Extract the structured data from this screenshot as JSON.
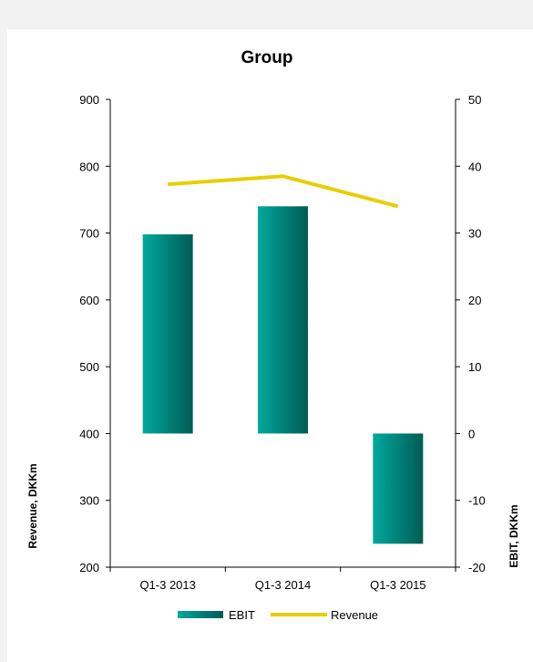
{
  "chart_data": {
    "type": "bar+line",
    "title": "Group",
    "categories": [
      "Q1-3 2013",
      "Q1-3 2014",
      "Q1-3 2015"
    ],
    "series": [
      {
        "name": "EBIT",
        "kind": "bar",
        "axis": "right",
        "values": [
          29.8,
          34,
          -16.5
        ],
        "color_start": "#00a99d",
        "color_end": "#005b55"
      },
      {
        "name": "Revenue",
        "kind": "line",
        "axis": "left",
        "values": [
          773,
          785,
          740
        ],
        "color": "#e6cf00"
      }
    ],
    "ylabel_left": "Revenue, DKKm",
    "ylabel_right": "EBIT, DKKm",
    "ylim_left": [
      200,
      900
    ],
    "ylim_right": [
      -20,
      50
    ],
    "yticks_left": [
      200,
      300,
      400,
      500,
      600,
      700,
      800,
      900
    ],
    "yticks_right": [
      -20,
      -10,
      0,
      10,
      20,
      30,
      40,
      50
    ],
    "grid": false,
    "legend": "bottom"
  }
}
